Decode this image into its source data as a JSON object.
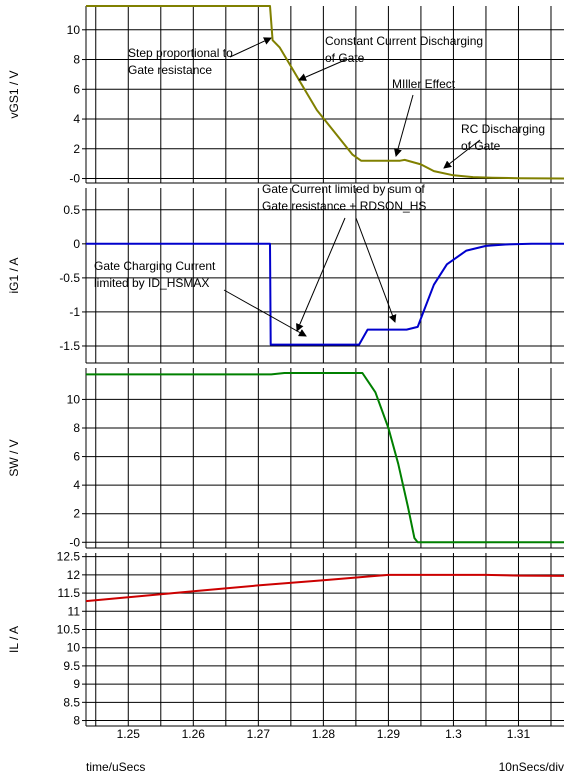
{
  "chart_data": [
    {
      "type": "line",
      "ylabel": "vGS1 / V",
      "ylim": [
        -0.3,
        11.6
      ],
      "yticks": [
        0,
        2,
        4,
        6,
        8,
        10
      ],
      "ytick_labels": [
        "-0",
        "2",
        "4",
        "6",
        "8",
        "10"
      ],
      "grid": true,
      "series": [
        {
          "color": "#808000",
          "x": [
            1.2435,
            1.2718,
            1.2722,
            1.2733,
            1.279,
            1.2845,
            1.2858,
            1.2918,
            1.2925,
            1.295,
            1.297,
            1.3,
            1.303,
            1.306,
            1.31,
            1.317
          ],
          "y": [
            11.6,
            11.6,
            9.3,
            8.8,
            4.6,
            1.6,
            1.2,
            1.2,
            1.25,
            0.95,
            0.5,
            0.22,
            0.1,
            0.05,
            0.02,
            0.0
          ]
        }
      ],
      "annotations": [
        {
          "lines": [
            "Step proportional to",
            "Gate resistance"
          ]
        },
        {
          "lines": [
            "Constant Current Discharging",
            "of Gate"
          ]
        },
        {
          "lines": [
            "MIller Effect"
          ]
        },
        {
          "lines": [
            "RC Discharging",
            "of Gate"
          ]
        }
      ]
    },
    {
      "type": "line",
      "ylabel": "iG1 / A",
      "ylim": [
        -1.75,
        0.82
      ],
      "yticks": [
        0.5,
        0,
        -0.5,
        -1,
        -1.5
      ],
      "ytick_labels": [
        "0.5",
        "0",
        "-0.5",
        "-1",
        "-1.5"
      ],
      "grid": true,
      "series": [
        {
          "color": "#0000cc",
          "x": [
            1.2435,
            1.2718,
            1.2719,
            1.2855,
            1.2868,
            1.2928,
            1.2945,
            1.2955,
            1.297,
            1.299,
            1.302,
            1.305,
            1.308,
            1.312,
            1.317
          ],
          "y": [
            0.0,
            0.0,
            -1.48,
            -1.48,
            -1.26,
            -1.26,
            -1.22,
            -0.97,
            -0.6,
            -0.3,
            -0.1,
            -0.03,
            -0.01,
            0.0,
            0.0
          ]
        }
      ],
      "annotations": [
        {
          "lines": [
            "Gate Current limited by sum of",
            "Gate resistance + RDSON_HS"
          ]
        },
        {
          "lines": [
            "Gate Charging Current",
            "limited by ID_HSMAX"
          ]
        }
      ]
    },
    {
      "type": "line",
      "ylabel": "SW / V",
      "ylim": [
        -0.4,
        12.2
      ],
      "yticks": [
        0,
        2,
        4,
        6,
        8,
        10
      ],
      "ytick_labels": [
        "-0",
        "2",
        "4",
        "6",
        "8",
        "10"
      ],
      "grid": true,
      "series": [
        {
          "color": "#008000",
          "x": [
            1.2435,
            1.272,
            1.274,
            1.286,
            1.288,
            1.29,
            1.2915,
            1.293,
            1.294,
            1.2945,
            1.295,
            1.317
          ],
          "y": [
            11.75,
            11.75,
            11.85,
            11.85,
            10.5,
            8.0,
            5.5,
            2.5,
            0.3,
            0.0,
            0.0,
            0.0
          ]
        }
      ]
    },
    {
      "type": "line",
      "ylabel": "IL / A",
      "ylim": [
        7.85,
        12.6
      ],
      "yticks": [
        12.5,
        12,
        11.5,
        11,
        10.5,
        10,
        9.5,
        9,
        8.5,
        8
      ],
      "ytick_labels": [
        "12.5",
        "12",
        "11.5",
        "11",
        "10.5",
        "10",
        "9.5",
        "9",
        "8.5",
        "8"
      ],
      "grid": true,
      "series": [
        {
          "color": "#cc0000",
          "x": [
            1.2435,
            1.26,
            1.27,
            1.28,
            1.29,
            1.295,
            1.3,
            1.305,
            1.31,
            1.317
          ],
          "y": [
            11.28,
            11.55,
            11.71,
            11.85,
            12.0,
            12.0,
            12.0,
            12.0,
            11.98,
            11.97
          ]
        }
      ]
    }
  ],
  "x_axis": {
    "xlim": [
      1.2435,
      1.317
    ],
    "ticks": [
      1.25,
      1.26,
      1.27,
      1.28,
      1.29,
      1.3,
      1.31
    ],
    "tick_labels": [
      "1.25",
      "1.26",
      "1.27",
      "1.28",
      "1.29",
      "1.3",
      "1.31"
    ]
  },
  "footer": {
    "xlabel": "time/uSecs",
    "scale": "10nSecs/div"
  }
}
